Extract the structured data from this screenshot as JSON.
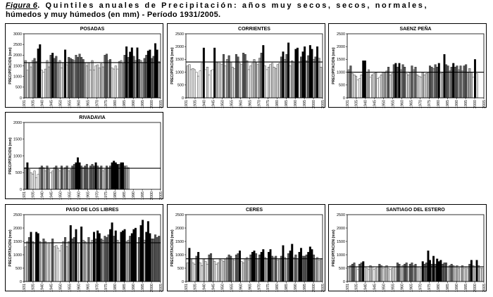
{
  "figure": {
    "label": "Figura 6",
    "caption_rest": ". Quintiles anuales de Precipitación: años muy secos, secos, normales,",
    "caption_line2": "húmedos y muy húmedos (en mm) - Período 1931/2005."
  },
  "chart_data": [
    {
      "type": "bar",
      "title": "POSADAS",
      "ylabel": "PRECIPITACION (mm)",
      "ylim": [
        0,
        3000
      ],
      "yticks": [
        0,
        500,
        1000,
        1500,
        2000,
        2500,
        3000
      ],
      "xticks": [
        "1931",
        "1935",
        "1940",
        "1945",
        "1950",
        "1955",
        "1960",
        "1965",
        "1970",
        "1975",
        "1980",
        "1985",
        "1990",
        "1995",
        "2000",
        "2005"
      ],
      "mean": 1650,
      "values": [
        1750,
        1300,
        1650,
        1450,
        1750,
        1850,
        1700,
        2300,
        2500,
        1300,
        1200,
        1350,
        1750,
        1450,
        2000,
        2100,
        1850,
        1950,
        1650,
        1750,
        1400,
        1650,
        2250,
        1550,
        1900,
        1850,
        1800,
        1750,
        2000,
        1900,
        2050,
        1900,
        1800,
        1650,
        1500,
        1650,
        1300,
        1750,
        1300,
        1500,
        1550,
        1400,
        1600,
        1450,
        2000,
        2050,
        1750,
        1800,
        1400,
        1350,
        1500,
        1350,
        1700,
        1750,
        1600,
        2000,
        2400,
        1900,
        2150,
        2350,
        1950,
        1750,
        2350,
        1800,
        1750,
        1650,
        1850,
        2000,
        2200,
        2250,
        1850,
        1950,
        2550,
        2250,
        1700
      ],
      "quintile": [
        3,
        2,
        3,
        2,
        3,
        4,
        3,
        5,
        5,
        2,
        1,
        2,
        3,
        2,
        4,
        5,
        4,
        4,
        3,
        3,
        1,
        3,
        5,
        2,
        4,
        4,
        4,
        3,
        4,
        4,
        4,
        4,
        4,
        3,
        2,
        3,
        1,
        3,
        1,
        2,
        2,
        2,
        3,
        2,
        4,
        4,
        3,
        4,
        2,
        1,
        2,
        1,
        3,
        3,
        3,
        4,
        5,
        4,
        5,
        5,
        4,
        3,
        5,
        4,
        3,
        3,
        4,
        4,
        5,
        5,
        4,
        4,
        5,
        5,
        3
      ],
      "missing": []
    },
    {
      "type": "bar",
      "title": "CORRIENTES",
      "ylabel": "PRECIPITACION (mm)",
      "ylim": [
        0,
        2500
      ],
      "yticks": [
        0,
        500,
        1000,
        1500,
        2000,
        2500
      ],
      "xticks": [
        "1931",
        "1935",
        "1940",
        "1945",
        "1950",
        "1955",
        "1960",
        "1965",
        "1970",
        "1975",
        "1980",
        "1985",
        "1990",
        "1995",
        "2000",
        "2005"
      ],
      "mean": 1400,
      "values": [
        1250,
        1300,
        1100,
        1150,
        1100,
        1000,
        850,
        1050,
        1350,
        1950,
        1100,
        1200,
        900,
        1050,
        1100,
        1950,
        1400,
        1350,
        1350,
        1300,
        1700,
        1250,
        1500,
        1650,
        1400,
        1200,
        1150,
        1700,
        1600,
        1350,
        1300,
        1750,
        1700,
        1450,
        1100,
        1250,
        1350,
        1500,
        1400,
        1300,
        1550,
        1750,
        2050,
        1250,
        1100,
        1200,
        1300,
        1350,
        1200,
        1150,
        1300,
        1350,
        1600,
        1800,
        1500,
        1700,
        2150,
        1250,
        1450,
        1400,
        1900,
        1950,
        1350,
        1600,
        1800,
        2000,
        1450,
        1650,
        2050,
        1900,
        1500,
        1600,
        2000,
        1550,
        1200
      ],
      "quintile": [
        2,
        2,
        1,
        2,
        1,
        1,
        1,
        1,
        2,
        5,
        1,
        2,
        1,
        1,
        1,
        5,
        3,
        2,
        2,
        2,
        4,
        2,
        3,
        4,
        3,
        2,
        2,
        4,
        4,
        2,
        2,
        4,
        4,
        3,
        1,
        2,
        2,
        3,
        3,
        2,
        3,
        4,
        5,
        2,
        1,
        2,
        2,
        2,
        2,
        2,
        2,
        2,
        4,
        5,
        3,
        4,
        5,
        2,
        3,
        3,
        5,
        5,
        2,
        4,
        5,
        5,
        3,
        4,
        5,
        5,
        3,
        4,
        5,
        3,
        2
      ],
      "missing": []
    },
    {
      "type": "bar",
      "title": "SAENZ PEÑA",
      "ylabel": "PRECIPITACION (mm)",
      "ylim": [
        0,
        2500
      ],
      "yticks": [
        0,
        500,
        1000,
        1500,
        2000,
        2500
      ],
      "xticks": [
        "1931",
        "1935",
        "1940",
        "1945",
        "1950",
        "1955",
        "1960",
        "1965",
        "1970",
        "1975",
        "1980",
        "1985",
        "1990",
        "1995",
        "2000",
        "2005"
      ],
      "mean": 1000,
      "values": [
        1100,
        1250,
        950,
        900,
        850,
        700,
        750,
        900,
        1450,
        1450,
        1000,
        1100,
        800,
        900,
        950,
        1000,
        750,
        800,
        900,
        1000,
        1000,
        1050,
        1200,
        900,
        950,
        1300,
        1350,
        1200,
        1350,
        1100,
        1300,
        1200,
        950,
        900,
        1000,
        1250,
        1100,
        1200,
        900,
        850,
        800,
        1000,
        900,
        950,
        1000,
        1250,
        1200,
        1150,
        1300,
        1200,
        1350,
        950,
        1000,
        1700,
        1300,
        1250,
        1050,
        1200,
        1350,
        1200,
        1250,
        1100,
        1250,
        1050,
        1250,
        1300,
        1000,
        1150,
        1000,
        800,
        1500,
        950,
        0,
        0,
        0
      ],
      "quintile": [
        3,
        4,
        2,
        2,
        2,
        1,
        1,
        2,
        5,
        5,
        3,
        3,
        1,
        2,
        2,
        3,
        1,
        1,
        2,
        3,
        3,
        3,
        4,
        2,
        2,
        4,
        5,
        4,
        5,
        3,
        4,
        4,
        2,
        2,
        3,
        4,
        3,
        4,
        2,
        2,
        1,
        3,
        2,
        2,
        3,
        4,
        4,
        3,
        4,
        4,
        5,
        2,
        3,
        5,
        4,
        4,
        3,
        4,
        5,
        4,
        4,
        3,
        4,
        3,
        4,
        4,
        3,
        3,
        3,
        1,
        5,
        2,
        3,
        3,
        3
      ],
      "missing": [
        72,
        73,
        74
      ]
    },
    {
      "type": "bar",
      "title": "RIVADAVIA",
      "ylabel": "PRECIPITACION (mm)",
      "ylim": [
        0,
        2000
      ],
      "yticks": [
        0,
        500,
        1000,
        1500,
        2000
      ],
      "xticks": [
        "1931",
        "1935",
        "1940",
        "1945",
        "1950",
        "1955",
        "1960",
        "1965",
        "1970",
        "1975",
        "1980",
        "1985",
        "1990",
        "1995",
        "2000",
        "2005"
      ],
      "mean": 630,
      "values": [
        650,
        800,
        600,
        500,
        450,
        550,
        350,
        450,
        650,
        700,
        650,
        550,
        700,
        600,
        500,
        550,
        650,
        700,
        600,
        550,
        700,
        600,
        650,
        700,
        550,
        600,
        700,
        750,
        800,
        950,
        800,
        700,
        650,
        700,
        750,
        600,
        700,
        750,
        700,
        800,
        700,
        650,
        700,
        550,
        600,
        700,
        650,
        700,
        800,
        850,
        800,
        750,
        750,
        800,
        800,
        700,
        700,
        650,
        0,
        0,
        0,
        0,
        0,
        0,
        0,
        0,
        0,
        0,
        0,
        0,
        0,
        0,
        0,
        0,
        0
      ],
      "quintile": [
        3,
        5,
        3,
        2,
        1,
        2,
        1,
        1,
        3,
        4,
        3,
        2,
        4,
        3,
        1,
        2,
        3,
        4,
        3,
        2,
        4,
        3,
        3,
        4,
        2,
        3,
        4,
        4,
        5,
        5,
        5,
        4,
        3,
        4,
        4,
        3,
        4,
        4,
        4,
        5,
        4,
        3,
        4,
        2,
        3,
        4,
        3,
        4,
        5,
        5,
        5,
        5,
        4,
        5,
        5,
        4,
        3,
        3,
        3,
        3,
        3,
        3,
        3,
        3,
        3,
        3,
        3,
        3,
        3,
        3,
        3,
        3,
        3,
        3,
        3
      ],
      "missing": [
        58,
        59,
        60,
        61,
        62,
        63,
        64,
        65,
        66,
        67,
        68,
        69,
        70,
        71,
        72,
        73,
        74
      ]
    },
    {
      "type": "bar",
      "title": "PASO DE LOS LIBRES",
      "ylabel": "PRECIPITACION (mm)",
      "ylim": [
        0,
        2500
      ],
      "yticks": [
        0,
        500,
        1000,
        1500,
        2000,
        2500
      ],
      "xticks": [
        "1931",
        "1935",
        "1940",
        "1945",
        "1950",
        "1955",
        "1960",
        "1965",
        "1970",
        "1975",
        "1980",
        "1985",
        "1990",
        "1995",
        "2000",
        "2005"
      ],
      "mean": 1450,
      "values": [
        1300,
        1500,
        1650,
        1850,
        1500,
        1400,
        1850,
        1800,
        1500,
        1450,
        1600,
        1500,
        1400,
        1450,
        1450,
        1600,
        1300,
        1350,
        1250,
        1150,
        1350,
        1500,
        1650,
        1300,
        1500,
        2100,
        1600,
        1650,
        1950,
        1450,
        1450,
        2050,
        1550,
        1500,
        1400,
        1650,
        1400,
        1550,
        1850,
        1600,
        1900,
        1800,
        1600,
        1550,
        1700,
        1650,
        1750,
        1950,
        2200,
        1700,
        1900,
        1550,
        1450,
        1850,
        1900,
        1950,
        1500,
        1550,
        1700,
        1800,
        1950,
        2000,
        1450,
        1650,
        2100,
        2300,
        1550,
        1850,
        2250,
        1800,
        1600,
        1600,
        1750,
        1650,
        1700
      ],
      "quintile": [
        2,
        3,
        4,
        5,
        3,
        2,
        5,
        5,
        3,
        2,
        4,
        3,
        2,
        2,
        2,
        4,
        2,
        2,
        1,
        1,
        2,
        3,
        4,
        2,
        3,
        5,
        4,
        4,
        5,
        2,
        2,
        5,
        3,
        3,
        2,
        4,
        2,
        3,
        5,
        4,
        5,
        5,
        4,
        3,
        4,
        4,
        4,
        5,
        5,
        4,
        5,
        3,
        2,
        5,
        5,
        5,
        3,
        3,
        4,
        5,
        5,
        5,
        2,
        4,
        5,
        5,
        3,
        5,
        5,
        5,
        4,
        4,
        4,
        4,
        4
      ],
      "missing": []
    },
    {
      "type": "bar",
      "title": "CERES",
      "ylabel": "PRECIPITACION (mm)",
      "ylim": [
        0,
        2500
      ],
      "yticks": [
        0,
        500,
        1000,
        1500,
        2000,
        2500
      ],
      "xticks": [
        "1931",
        "1935",
        "1940",
        "1945",
        "1950",
        "1955",
        "1960",
        "1965",
        "1970",
        "1975",
        "1980",
        "1985",
        "1990",
        "1995",
        "2000",
        "2005"
      ],
      "mean": 850,
      "values": [
        700,
        1250,
        850,
        700,
        650,
        950,
        1100,
        700,
        600,
        850,
        750,
        650,
        1000,
        1050,
        850,
        750,
        650,
        700,
        850,
        800,
        750,
        850,
        900,
        1000,
        950,
        850,
        800,
        1000,
        1050,
        1150,
        750,
        700,
        850,
        900,
        800,
        1000,
        1100,
        1150,
        1050,
        850,
        1000,
        1100,
        1200,
        900,
        850,
        1100,
        1200,
        950,
        900,
        950,
        800,
        850,
        950,
        1350,
        900,
        850,
        1050,
        1150,
        1400,
        900,
        1000,
        850,
        1100,
        1250,
        950,
        950,
        1000,
        1100,
        1300,
        1200,
        1000,
        850,
        900,
        800,
        850
      ],
      "quintile": [
        2,
        5,
        3,
        2,
        1,
        4,
        5,
        2,
        1,
        3,
        2,
        1,
        4,
        4,
        3,
        2,
        1,
        2,
        3,
        2,
        2,
        3,
        3,
        4,
        4,
        3,
        2,
        4,
        4,
        5,
        2,
        2,
        3,
        3,
        2,
        4,
        5,
        5,
        4,
        3,
        4,
        5,
        5,
        3,
        3,
        5,
        5,
        4,
        3,
        4,
        2,
        3,
        4,
        5,
        3,
        3,
        4,
        5,
        5,
        3,
        4,
        3,
        5,
        5,
        4,
        4,
        4,
        5,
        5,
        5,
        4,
        3,
        3,
        2,
        3
      ],
      "missing": []
    },
    {
      "type": "bar",
      "title": "SANTIAGO DEL ESTERO",
      "ylabel": "PRECIPITACION (mm)",
      "ylim": [
        0,
        2500
      ],
      "yticks": [
        0,
        500,
        1000,
        1500,
        2000,
        2500
      ],
      "xticks": [
        "1931",
        "1935",
        "1940",
        "1945",
        "1950",
        "1955",
        "1960",
        "1965",
        "1970",
        "1975",
        "1980",
        "1985",
        "1990",
        "1995",
        "2000",
        "2005"
      ],
      "mean": 550,
      "values": [
        500,
        600,
        650,
        700,
        550,
        450,
        650,
        700,
        750,
        550,
        500,
        450,
        600,
        550,
        450,
        500,
        550,
        650,
        600,
        500,
        550,
        600,
        500,
        450,
        500,
        550,
        550,
        700,
        650,
        550,
        600,
        650,
        700,
        550,
        650,
        700,
        600,
        650,
        550,
        550,
        500,
        750,
        650,
        700,
        1150,
        800,
        650,
        950,
        650,
        850,
        750,
        800,
        650,
        700,
        700,
        550,
        600,
        650,
        600,
        550,
        600,
        500,
        550,
        600,
        500,
        550,
        500,
        650,
        800,
        600,
        550,
        800,
        600,
        500,
        500
      ],
      "quintile": [
        2,
        3,
        4,
        4,
        2,
        1,
        4,
        4,
        5,
        2,
        2,
        1,
        3,
        2,
        1,
        2,
        2,
        4,
        3,
        2,
        2,
        3,
        2,
        1,
        2,
        2,
        2,
        4,
        4,
        2,
        3,
        4,
        4,
        2,
        4,
        4,
        3,
        4,
        2,
        2,
        2,
        5,
        4,
        4,
        5,
        5,
        4,
        5,
        4,
        5,
        5,
        5,
        4,
        4,
        4,
        2,
        3,
        4,
        3,
        2,
        3,
        2,
        2,
        3,
        2,
        2,
        2,
        4,
        5,
        3,
        2,
        5,
        3,
        2,
        2
      ],
      "missing": []
    }
  ]
}
